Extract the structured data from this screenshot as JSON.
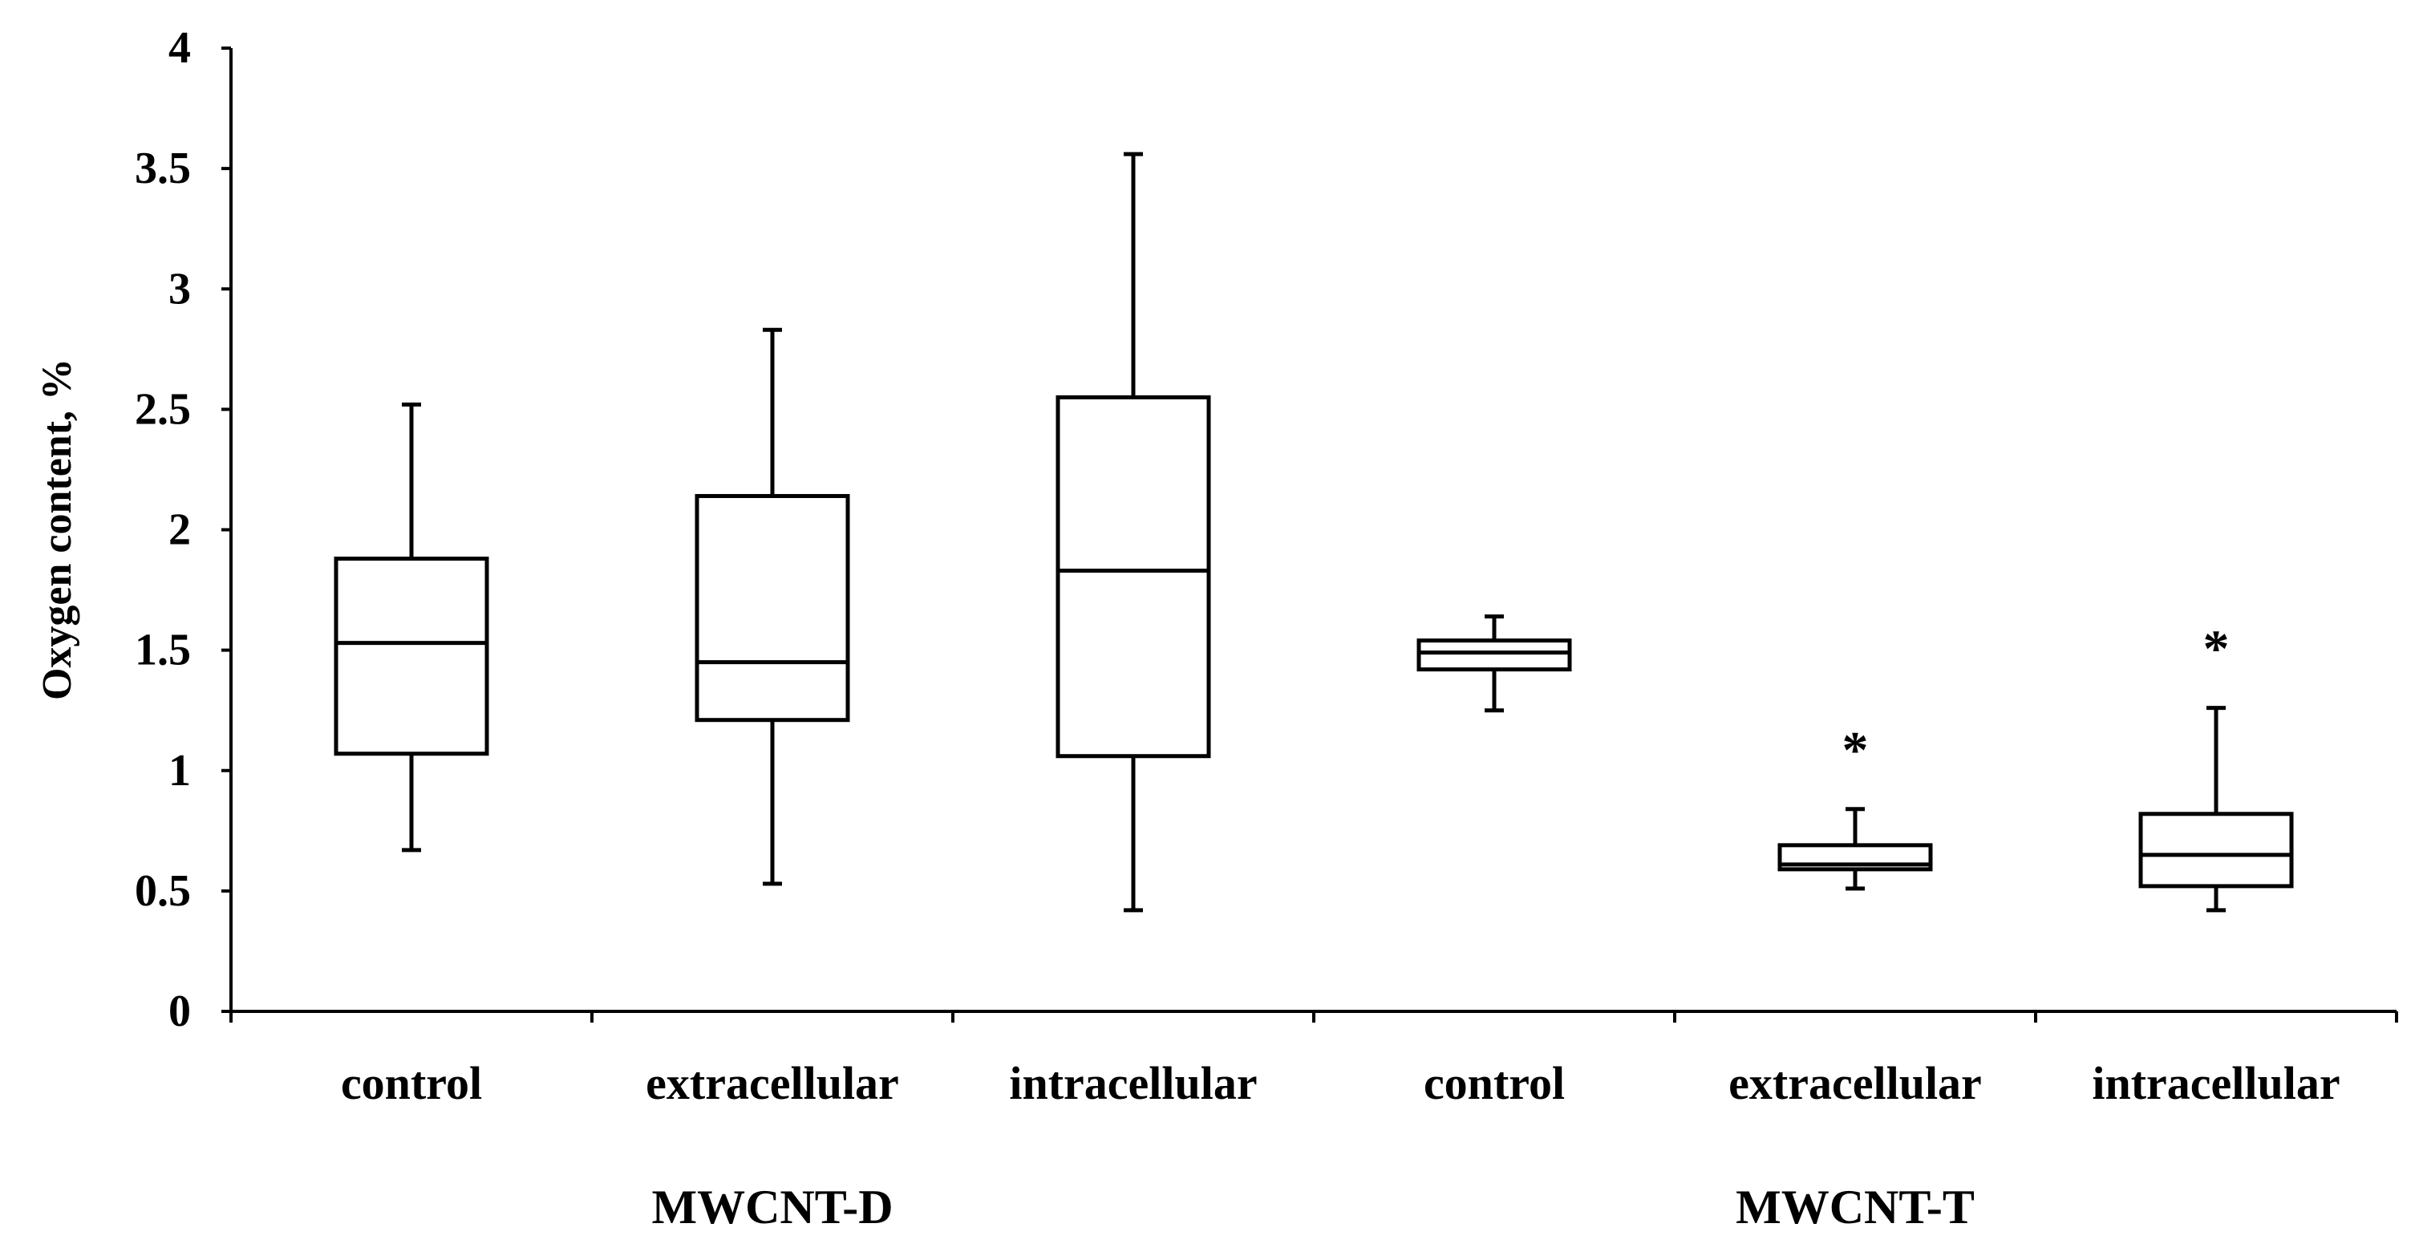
{
  "chart_data": {
    "type": "boxplot",
    "title": "",
    "ylabel": "Oxygen content, %",
    "xlabel": "",
    "ylim": [
      0,
      4
    ],
    "yticks": [
      "0",
      "0.5",
      "1",
      "1.5",
      "2",
      "2.5",
      "3",
      "3.5",
      "4"
    ],
    "ytick_values": [
      0,
      0.5,
      1,
      1.5,
      2,
      2.5,
      3,
      3.5,
      4
    ],
    "groups": [
      {
        "label": "MWCNT-D",
        "boxes": [
          {
            "label": "control",
            "min": 0.67,
            "q1": 1.07,
            "median": 1.53,
            "q3": 1.88,
            "max": 2.52,
            "mark": ""
          },
          {
            "label": "extracellular",
            "min": 0.53,
            "q1": 1.21,
            "median": 1.45,
            "q3": 2.14,
            "max": 2.83,
            "mark": ""
          },
          {
            "label": "intracellular",
            "min": 0.42,
            "q1": 1.06,
            "median": 1.83,
            "q3": 2.55,
            "max": 3.56,
            "mark": ""
          }
        ]
      },
      {
        "label": "MWCNT-T",
        "boxes": [
          {
            "label": "control",
            "min": 1.25,
            "q1": 1.42,
            "median": 1.49,
            "q3": 1.54,
            "max": 1.64,
            "mark": ""
          },
          {
            "label": "extracellular",
            "min": 0.51,
            "q1": 0.59,
            "median": 0.61,
            "q3": 0.69,
            "max": 0.84,
            "mark": "*"
          },
          {
            "label": "intracellular",
            "min": 0.42,
            "q1": 0.52,
            "median": 0.65,
            "q3": 0.82,
            "max": 1.26,
            "mark": "*"
          }
        ]
      }
    ],
    "grid": false,
    "legend": "none"
  }
}
